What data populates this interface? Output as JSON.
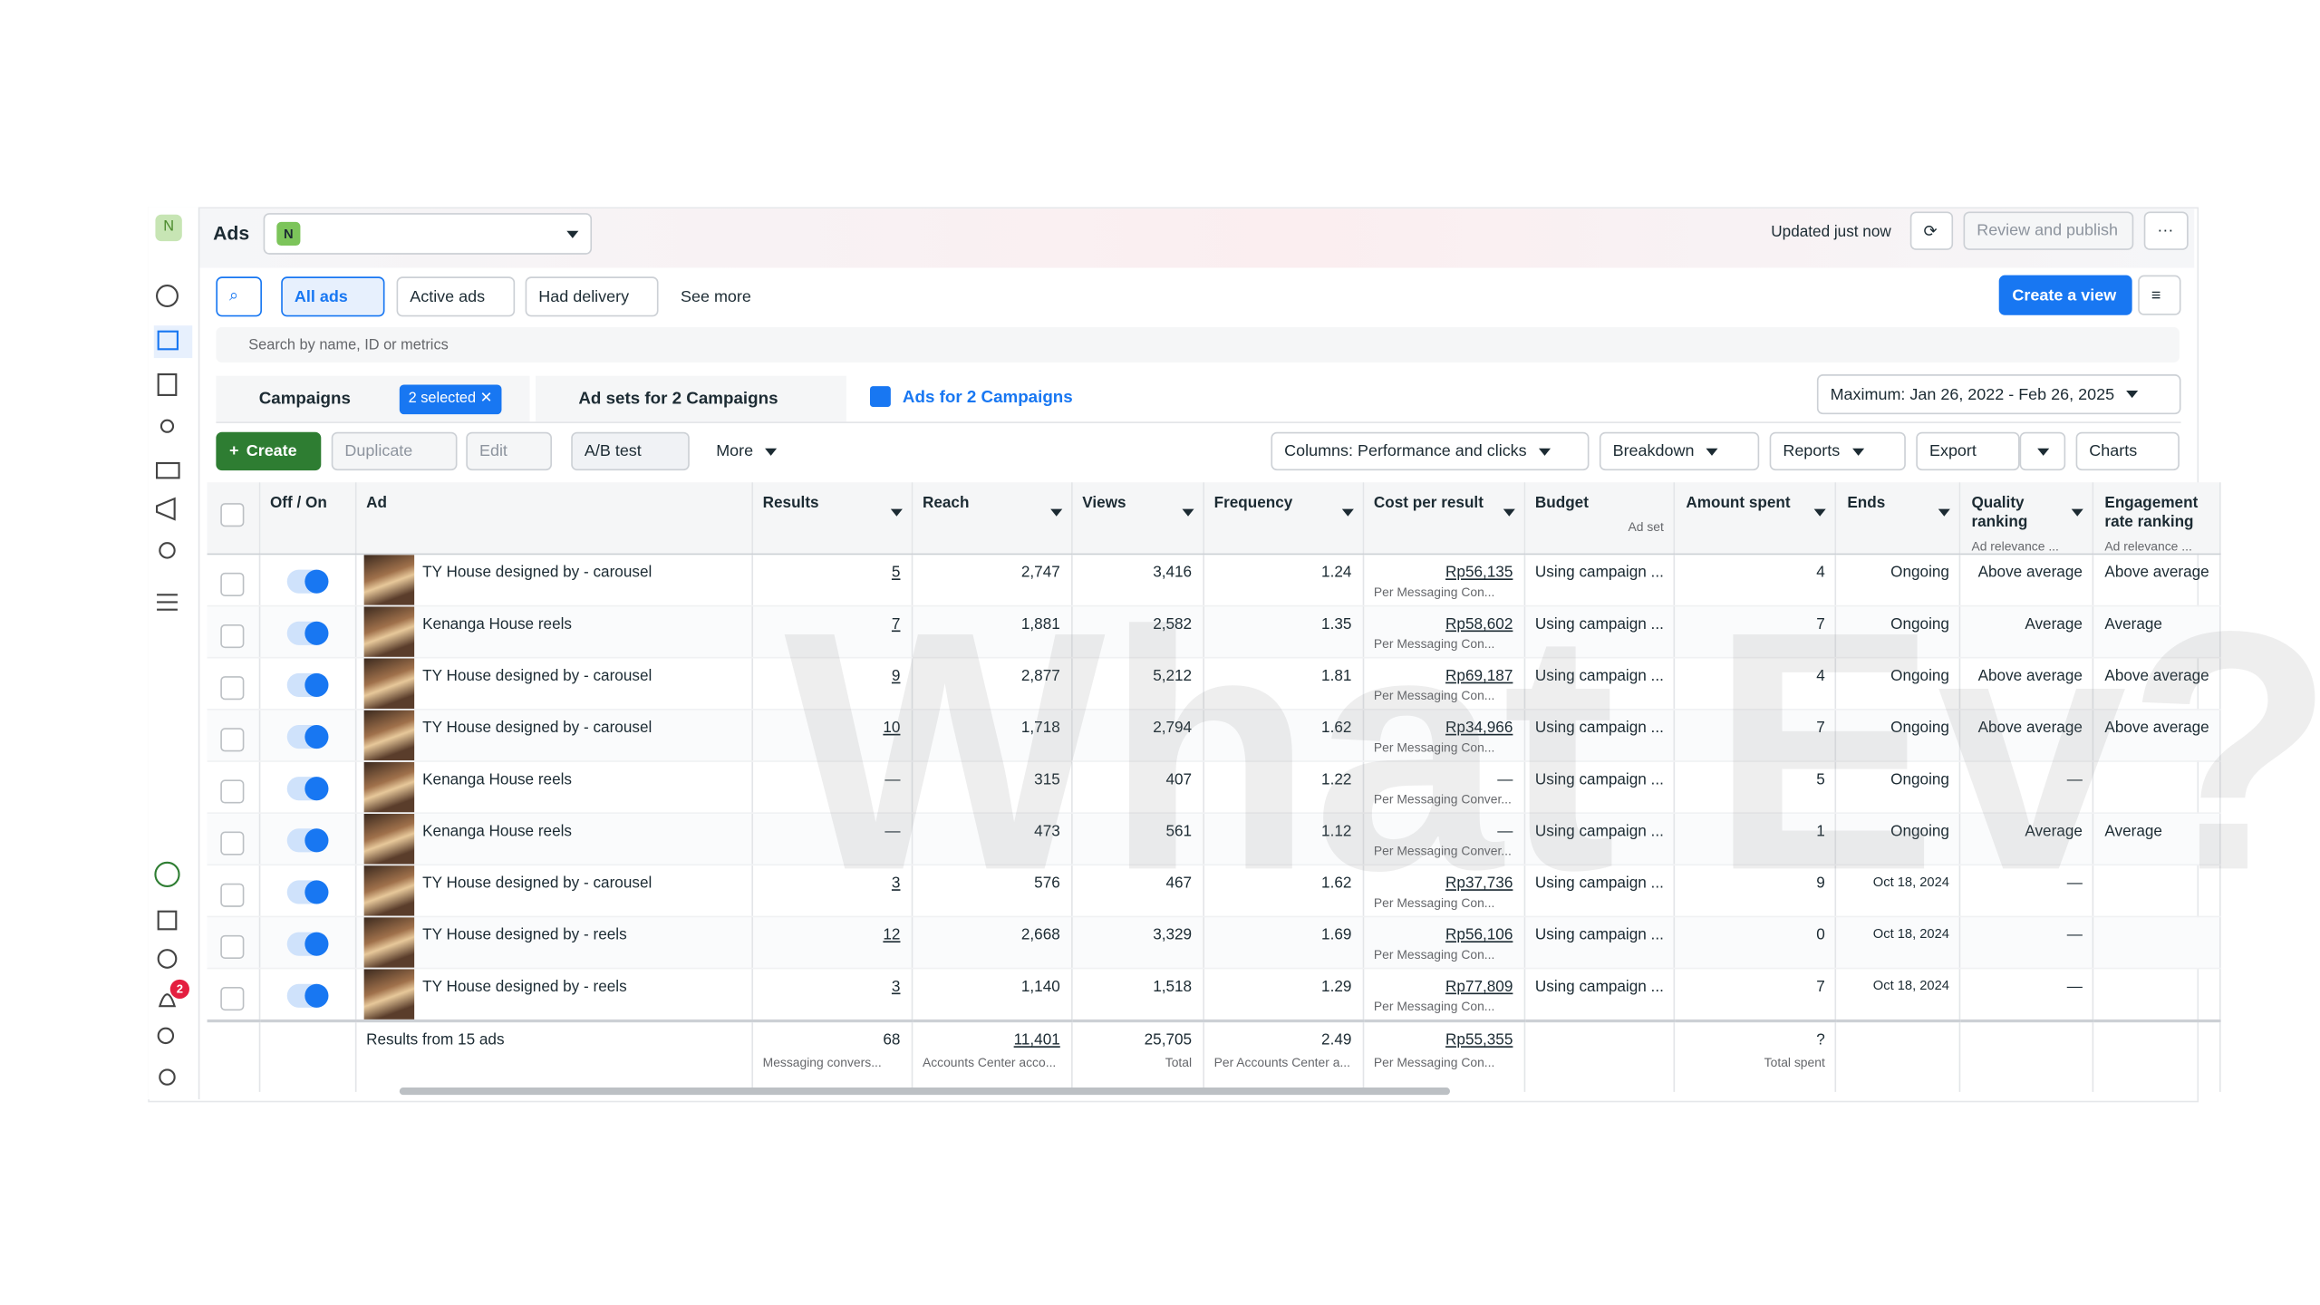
{
  "header": {
    "title": "Ads",
    "account_avatar": "N",
    "status": "Updated just now",
    "review_button": "Review and publish"
  },
  "sidebar": {
    "avatar": "N",
    "notification_count": "2"
  },
  "filters": {
    "items": [
      "All ads",
      "Active ads",
      "Had delivery",
      "See more"
    ],
    "create_view": "Create a view",
    "search_placeholder": "Search by name, ID or metrics"
  },
  "tabs": {
    "campaigns": "Campaigns",
    "selected": "2 selected",
    "ad_sets": "Ad sets for 2 Campaigns",
    "ads": "Ads for 2 Campaigns",
    "date_range": "Maximum: Jan 26, 2022 - Feb 26, 2025"
  },
  "toolbar": {
    "create": "Create",
    "duplicate": "Duplicate",
    "edit": "Edit",
    "ab_test": "A/B test",
    "more": "More",
    "columns": "Columns: Performance and clicks",
    "breakdown": "Breakdown",
    "reports": "Reports",
    "export": "Export",
    "charts": "Charts"
  },
  "watermark": "What Ev?",
  "table": {
    "columns": [
      {
        "label": "Off / On"
      },
      {
        "label": "Ad"
      },
      {
        "label": "Results"
      },
      {
        "label": "Reach"
      },
      {
        "label": "Views"
      },
      {
        "label": "Frequency"
      },
      {
        "label": "Cost per result"
      },
      {
        "label": "Budget",
        "sub": "Ad set"
      },
      {
        "label": "Amount spent"
      },
      {
        "label": "Ends"
      },
      {
        "label": "Quality ranking",
        "sub": "Ad relevance ..."
      },
      {
        "label": "Engagement rate ranking",
        "sub": "Ad relevance ..."
      }
    ],
    "rows": [
      {
        "name": "TY House designed by - carousel",
        "results": "5",
        "reach": "2,747",
        "views": "3,416",
        "frequency": "1.24",
        "cost": "Rp56,135",
        "cost_sub": "Per Messaging Con...",
        "budget": "Using campaign ...",
        "amount": "4",
        "ends": "Ongoing",
        "quality": "Above average",
        "engagement": "Above average"
      },
      {
        "name": "Kenanga House reels",
        "results": "7",
        "reach": "1,881",
        "views": "2,582",
        "frequency": "1.35",
        "cost": "Rp58,602",
        "cost_sub": "Per Messaging Con...",
        "budget": "Using campaign ...",
        "amount": "7",
        "ends": "Ongoing",
        "quality": "Average",
        "engagement": "Average"
      },
      {
        "name": "TY House designed by - carousel",
        "results": "9",
        "reach": "2,877",
        "views": "5,212",
        "frequency": "1.81",
        "cost": "Rp69,187",
        "cost_sub": "Per Messaging Con...",
        "budget": "Using campaign ...",
        "amount": "4",
        "ends": "Ongoing",
        "quality": "Above average",
        "engagement": "Above average"
      },
      {
        "name": "TY House designed by - carousel",
        "results": "10",
        "reach": "1,718",
        "views": "2,794",
        "frequency": "1.62",
        "cost": "Rp34,966",
        "cost_sub": "Per Messaging Con...",
        "budget": "Using campaign ...",
        "amount": "7",
        "ends": "Ongoing",
        "quality": "Above average",
        "engagement": "Above average"
      },
      {
        "name": "Kenanga House reels",
        "results": "—",
        "reach": "315",
        "views": "407",
        "frequency": "1.22",
        "cost": "—",
        "cost_sub": "Per Messaging Conver...",
        "budget": "Using campaign ...",
        "amount": "5",
        "ends": "Ongoing",
        "quality": "—",
        "engagement": null
      },
      {
        "name": "Kenanga House reels",
        "results": "—",
        "reach": "473",
        "views": "561",
        "frequency": "1.12",
        "cost": "—",
        "cost_sub": "Per Messaging Conver...",
        "budget": "Using campaign ...",
        "amount": "1",
        "ends": "Ongoing",
        "quality": "Average",
        "engagement": "Average"
      },
      {
        "name": "TY House designed by - carousel",
        "results": "3",
        "reach": "576",
        "views": "467",
        "frequency": "1.62",
        "cost": "Rp37,736",
        "cost_sub": "Per Messaging Con...",
        "budget": "Using campaign ...",
        "amount": "9",
        "ends": "Oct 18, 2024",
        "quality": "—",
        "engagement": null
      },
      {
        "name": "TY House designed by - reels",
        "results": "12",
        "reach": "2,668",
        "views": "3,329",
        "frequency": "1.69",
        "cost": "Rp56,106",
        "cost_sub": "Per Messaging Con...",
        "budget": "Using campaign ...",
        "amount": "0",
        "ends": "Oct 18, 2024",
        "quality": "—",
        "engagement": null
      },
      {
        "name": "TY House designed by - reels",
        "results": "3",
        "reach": "1,140",
        "views": "1,518",
        "frequency": "1.29",
        "cost": "Rp77,809",
        "cost_sub": "Per Messaging Con...",
        "budget": "Using campaign ...",
        "amount": "7",
        "ends": "Oct 18, 2024",
        "quality": "—",
        "engagement": null
      }
    ],
    "footer": {
      "label": "Results from 15 ads",
      "results": "68",
      "results_sub": "Messaging convers...",
      "reach": "11,401",
      "reach_sub": "Accounts Center acco...",
      "views": "25,705",
      "views_sub": "Total",
      "frequency": "2.49",
      "frequency_sub": "Per Accounts Center a...",
      "cost": "Rp55,355",
      "cost_sub": "Per Messaging Con...",
      "amount": "?",
      "amount_sub": "Total spent"
    }
  }
}
